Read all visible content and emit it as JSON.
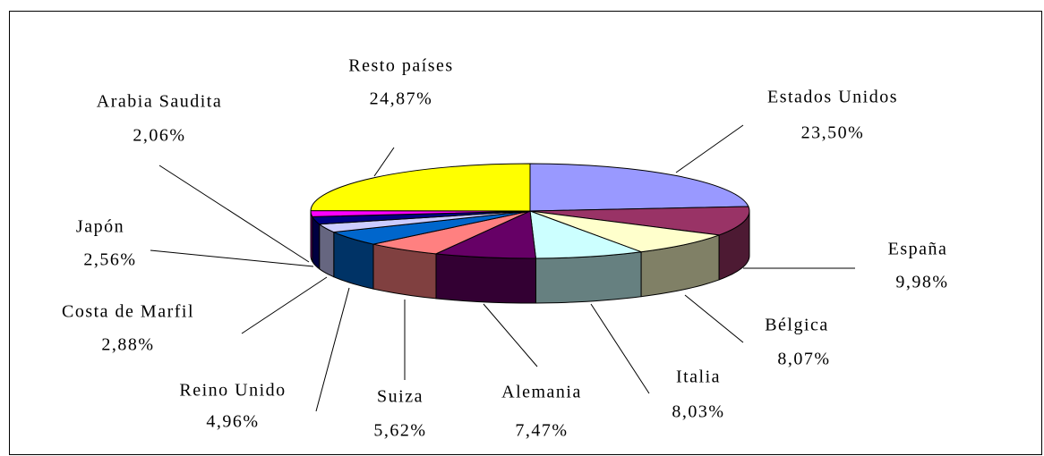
{
  "chart_data": {
    "type": "pie",
    "categories": [
      "Estados Unidos",
      "España",
      "Bélgica",
      "Italia",
      "Alemania",
      "Suiza",
      "Reino Unido",
      "Costa de Marfil",
      "Japón",
      "Arabia Saudita",
      "Resto países"
    ],
    "values": [
      23.5,
      9.98,
      8.07,
      8.03,
      7.47,
      5.62,
      4.96,
      2.88,
      2.56,
      2.06,
      24.87
    ],
    "value_labels": [
      "23,50%",
      "9,98%",
      "8,07%",
      "8,03%",
      "7,47%",
      "5,62%",
      "4,96%",
      "2,88%",
      "2,56%",
      "2,06%",
      "24,87%"
    ],
    "colors": [
      "#9999ff",
      "#993366",
      "#ffffcc",
      "#ccffff",
      "#660066",
      "#ff8080",
      "#0066cc",
      "#ccccff",
      "#000080",
      "#ff00ff",
      "#ffff00"
    ]
  }
}
